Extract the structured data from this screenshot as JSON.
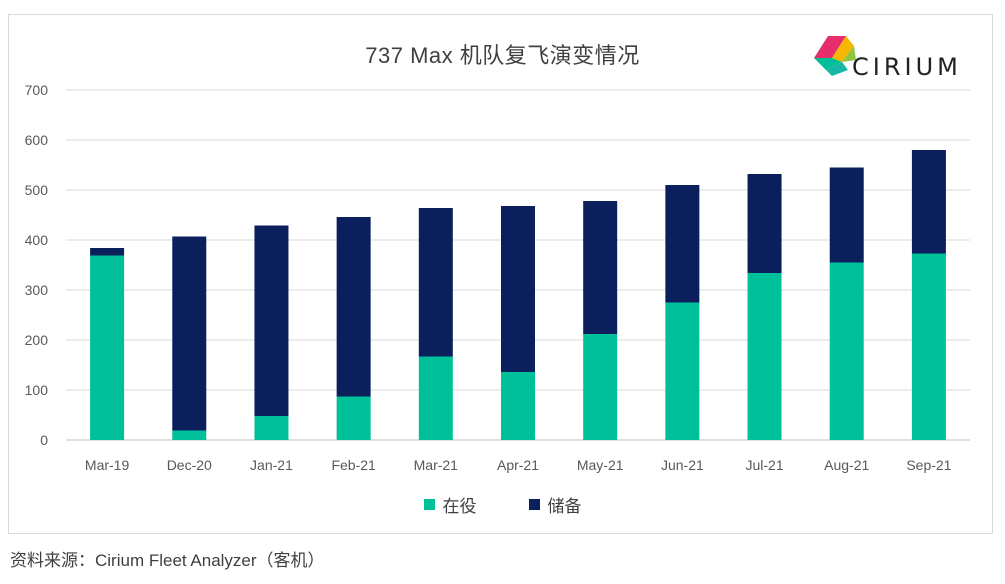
{
  "chart_data": {
    "type": "bar",
    "stacked": true,
    "title": "737 Max 机队复飞演变情况",
    "categories": [
      "Mar-19",
      "Dec-20",
      "Jan-21",
      "Feb-21",
      "Mar-21",
      "Apr-21",
      "May-21",
      "Jun-21",
      "Jul-21",
      "Aug-21",
      "Sep-21"
    ],
    "series": [
      {
        "name": "在役",
        "color": "#00c09a",
        "values": [
          369,
          19,
          48,
          87,
          167,
          136,
          212,
          275,
          334,
          355,
          373
        ]
      },
      {
        "name": "储备",
        "color": "#0a1f5c",
        "values": [
          15,
          388,
          381,
          359,
          297,
          332,
          266,
          235,
          198,
          190,
          207
        ]
      }
    ],
    "ylim": [
      0,
      700
    ],
    "yticks": [
      0,
      100,
      200,
      300,
      400,
      500,
      600,
      700
    ],
    "grid": true,
    "legend": "bottom"
  },
  "logo": {
    "text": "CIRIUM"
  },
  "source": "资料来源：Cirium Fleet Analyzer（客机）"
}
